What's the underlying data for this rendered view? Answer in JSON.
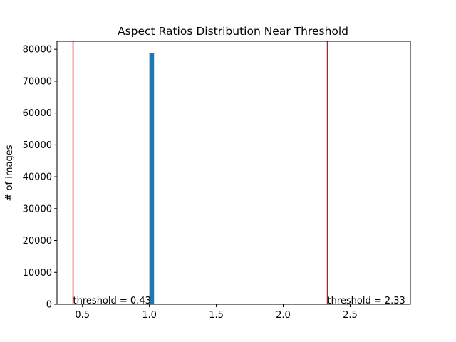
{
  "chart_data": {
    "type": "bar",
    "title": "Aspect Ratios Distribution Near Threshold",
    "xlabel": "",
    "ylabel": "# of images",
    "xlim": [
      0.31,
      2.95
    ],
    "ylim": [
      0,
      82500
    ],
    "x_ticks": [
      0.5,
      1.0,
      1.5,
      2.0,
      2.5
    ],
    "x_tick_labels": [
      "0.5",
      "1.0",
      "1.5",
      "2.0",
      "2.5"
    ],
    "y_ticks": [
      0,
      10000,
      20000,
      30000,
      40000,
      50000,
      60000,
      70000,
      80000
    ],
    "y_tick_labels": [
      "0",
      "10000",
      "20000",
      "30000",
      "40000",
      "50000",
      "60000",
      "70000",
      "80000"
    ],
    "bars": [
      {
        "x_start": 1.0,
        "x_end": 1.035,
        "value": 78700
      }
    ],
    "bar_color": "#1f77b4",
    "thresholds": [
      {
        "x": 0.43,
        "label": "threshold = 0.43"
      },
      {
        "x": 2.33,
        "label": "threshold = 2.33"
      }
    ],
    "threshold_color": "#ff0000",
    "grid": false
  }
}
